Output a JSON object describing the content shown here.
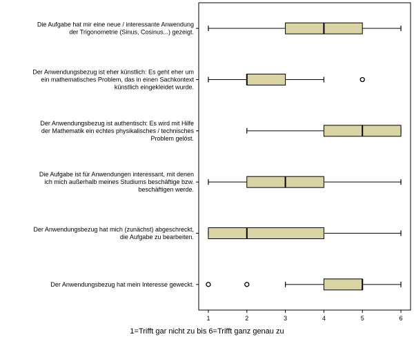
{
  "chart_data": {
    "type": "boxplot",
    "title": "",
    "xlabel": "1=Trifft gar nicht zu bis 6=Trifft ganz genau zu",
    "ylabel": "",
    "xlim": [
      0.75,
      6.25
    ],
    "x_ticks": [
      "1",
      "2",
      "3",
      "4",
      "5",
      "6"
    ],
    "grid": false,
    "legend": "none",
    "box_fill": "#d9d3a6",
    "line_color": "#000000",
    "categories": [
      {
        "label_lines": [
          "Die Aufgabe hat mir eine neue / interessante Anwendung",
          "der Trigonometrie (Sinus, Cosinus...) gezeigt."
        ],
        "whisker_low": 1,
        "q1": 3,
        "median": 4,
        "q3": 5,
        "whisker_high": 6,
        "outliers": []
      },
      {
        "label_lines": [
          "Der Anwendungsbezug ist eher künstlich: Es geht eher um",
          "ein mathematisches Problem, das in einen Sachkontext",
          "künstlich eingekleidet wurde."
        ],
        "whisker_low": 1,
        "q1": 2,
        "median": 2,
        "q3": 3,
        "whisker_high": 4,
        "outliers": [
          5
        ]
      },
      {
        "label_lines": [
          "Der Anwendungsbezug ist authentisch: Es wird mit Hilfe",
          "der Mathematik ein echtes physikalisches / technisches",
          "Problem gelöst."
        ],
        "whisker_low": 2,
        "q1": 4,
        "median": 5,
        "q3": 6,
        "whisker_high": 6,
        "outliers": []
      },
      {
        "label_lines": [
          "Die Aufgabe ist für Anwendungen interessant, mit denen",
          "ich mich außerhalb meines Studiums beschäftige bzw.",
          "beschäftigen werde."
        ],
        "whisker_low": 1,
        "q1": 2,
        "median": 3,
        "q3": 4,
        "whisker_high": 6,
        "outliers": []
      },
      {
        "label_lines": [
          "Der Anwendungsbezug hat mich (zunächst) abgeschreckt,",
          "die Aufgabe zu bearbeiten."
        ],
        "whisker_low": 1,
        "q1": 1,
        "median": 2,
        "q3": 4,
        "whisker_high": 6,
        "outliers": []
      },
      {
        "label_lines": [
          "Der Anwendungsbezug hat mein Interesse geweckt."
        ],
        "whisker_low": 3,
        "q1": 4,
        "median": 5,
        "q3": 5,
        "whisker_high": 6,
        "outliers": [
          1,
          2
        ]
      }
    ]
  }
}
